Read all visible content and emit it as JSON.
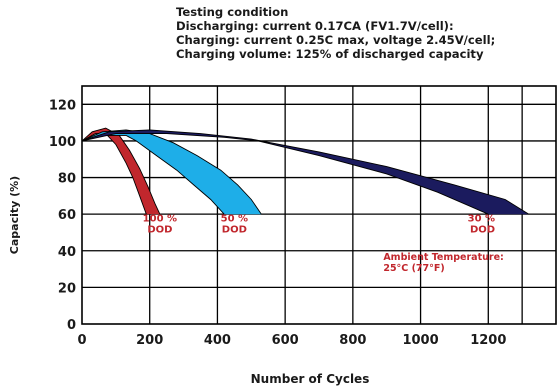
{
  "testing_condition": {
    "heading": "Testing condition",
    "lines": [
      "Discharging: current 0.17CA (FV1.7V/cell):",
      "Charging: current 0.25C max, voltage 2.45V/cell;",
      "Charging volume: 125% of discharged capacity"
    ]
  },
  "chart_data": {
    "type": "area",
    "xlabel": "Number of   Cycles",
    "ylabel": "Capacity (%)",
    "xlim": [
      0,
      1400
    ],
    "ylim": [
      0,
      130
    ],
    "x_ticks": [
      0,
      200,
      400,
      600,
      800,
      1000,
      1200
    ],
    "y_ticks": [
      0,
      20,
      40,
      60,
      80,
      100,
      120
    ],
    "grid": true,
    "series": [
      {
        "name": "100 % DOD",
        "label_lines": [
          "100 %",
          "DOD"
        ],
        "color": "#c1272d",
        "upper": [
          [
            0,
            100
          ],
          [
            30,
            105
          ],
          [
            70,
            107
          ],
          [
            110,
            103
          ],
          [
            140,
            95
          ],
          [
            170,
            85
          ],
          [
            195,
            75
          ],
          [
            215,
            66
          ],
          [
            230,
            60
          ]
        ],
        "lower": [
          [
            0,
            100
          ],
          [
            40,
            104
          ],
          [
            70,
            104
          ],
          [
            100,
            98
          ],
          [
            130,
            88
          ],
          [
            150,
            80
          ],
          [
            170,
            70
          ],
          [
            190,
            60
          ]
        ]
      },
      {
        "name": "50 % DOD",
        "label_lines": [
          "50 %",
          "DOD"
        ],
        "color": "#1eaee8",
        "upper": [
          [
            0,
            100
          ],
          [
            60,
            105
          ],
          [
            130,
            106
          ],
          [
            200,
            104
          ],
          [
            270,
            99
          ],
          [
            340,
            92
          ],
          [
            410,
            84
          ],
          [
            460,
            76
          ],
          [
            500,
            68
          ],
          [
            530,
            60
          ]
        ],
        "lower": [
          [
            0,
            100
          ],
          [
            60,
            103
          ],
          [
            130,
            103
          ],
          [
            160,
            100
          ],
          [
            220,
            92
          ],
          [
            280,
            84
          ],
          [
            330,
            76
          ],
          [
            380,
            68
          ],
          [
            420,
            60
          ]
        ]
      },
      {
        "name": "30 % DOD",
        "label_lines": [
          "30 %",
          "DOD"
        ],
        "color": "#1b1b5e",
        "upper": [
          [
            0,
            100
          ],
          [
            80,
            105
          ],
          [
            200,
            106
          ],
          [
            350,
            104
          ],
          [
            500,
            101
          ],
          [
            700,
            94
          ],
          [
            900,
            86
          ],
          [
            1100,
            76
          ],
          [
            1250,
            68
          ],
          [
            1320,
            60
          ]
        ],
        "lower": [
          [
            0,
            100
          ],
          [
            100,
            104
          ],
          [
            250,
            104
          ],
          [
            420,
            102
          ],
          [
            520,
            100
          ],
          [
            700,
            92
          ],
          [
            900,
            82
          ],
          [
            1050,
            72
          ],
          [
            1150,
            64
          ],
          [
            1200,
            60
          ]
        ]
      }
    ],
    "annotation": {
      "lines": [
        "Ambient Temperature:",
        "25°C (77°F)"
      ],
      "color": "#c1272d"
    }
  }
}
